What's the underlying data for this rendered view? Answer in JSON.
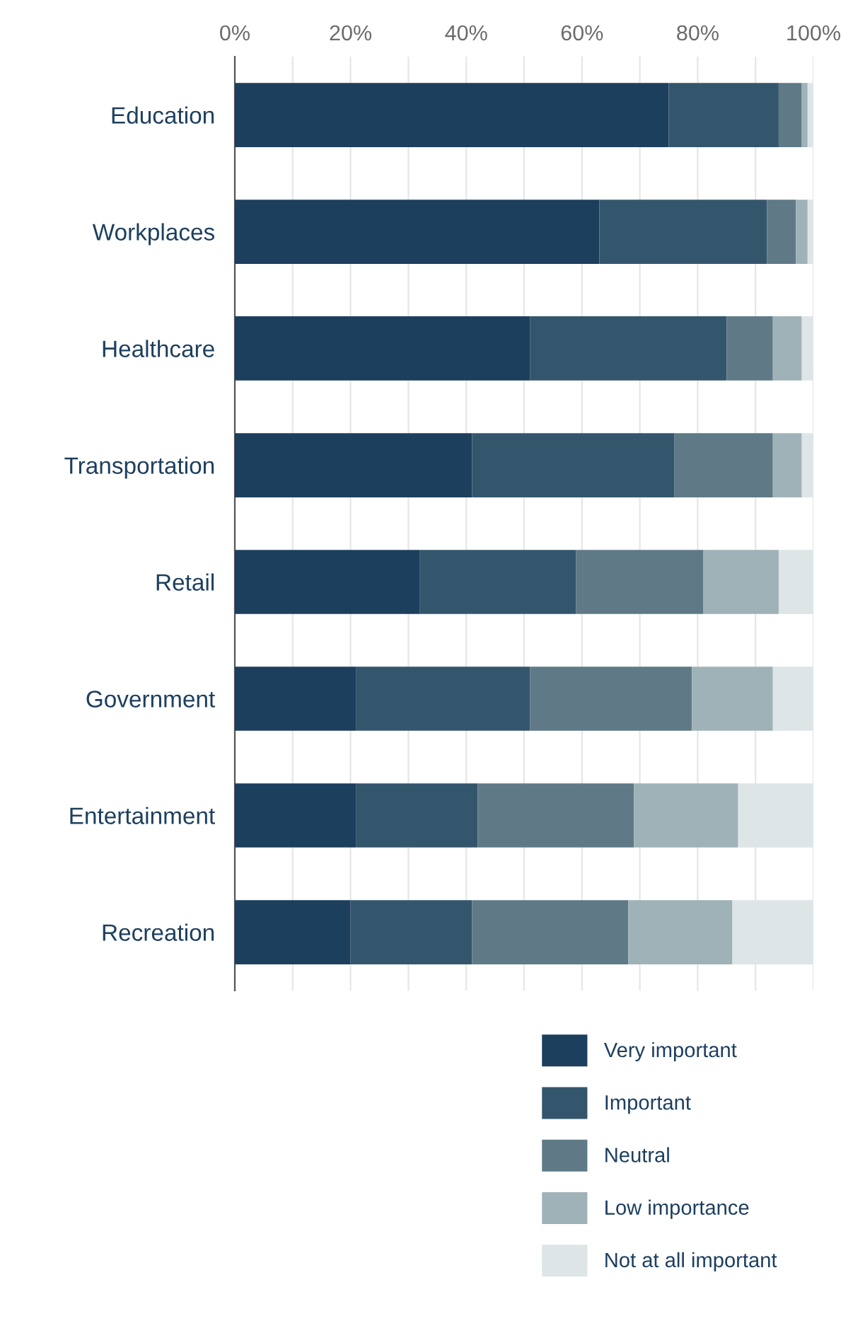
{
  "chart_data": {
    "type": "bar",
    "orientation": "horizontal",
    "stacked": true,
    "categories": [
      "Education",
      "Workplaces",
      "Healthcare",
      "Transportation",
      "Retail",
      "Government",
      "Entertainment",
      "Recreation"
    ],
    "series": [
      {
        "name": "Very important",
        "color": "#1d3f5e",
        "values": [
          75,
          63,
          51,
          41,
          32,
          21,
          21,
          20
        ]
      },
      {
        "name": "Important",
        "color": "#34566d",
        "values": [
          19,
          29,
          34,
          35,
          27,
          30,
          21,
          21
        ]
      },
      {
        "name": "Neutral",
        "color": "#5f7a86",
        "values": [
          4,
          5,
          8,
          17,
          22,
          28,
          27,
          27
        ]
      },
      {
        "name": "Low importance",
        "color": "#9fb2b8",
        "values": [
          1,
          2,
          5,
          5,
          13,
          14,
          18,
          18
        ]
      },
      {
        "name": "Not at all important",
        "color": "#dde5e7",
        "values": [
          1,
          1,
          2,
          2,
          6,
          7,
          13,
          14
        ]
      }
    ],
    "xlim": [
      0,
      100
    ],
    "xticks": [
      {
        "value": 0,
        "label": "0%"
      },
      {
        "value": 10,
        "label": null
      },
      {
        "value": 20,
        "label": "20%"
      },
      {
        "value": 30,
        "label": null
      },
      {
        "value": 40,
        "label": "40%"
      },
      {
        "value": 50,
        "label": null
      },
      {
        "value": 60,
        "label": "60%"
      },
      {
        "value": 70,
        "label": null
      },
      {
        "value": 80,
        "label": "80%"
      },
      {
        "value": 90,
        "label": null
      },
      {
        "value": 100,
        "label": "100%"
      }
    ],
    "grid": "x",
    "legend": "bottom right"
  }
}
